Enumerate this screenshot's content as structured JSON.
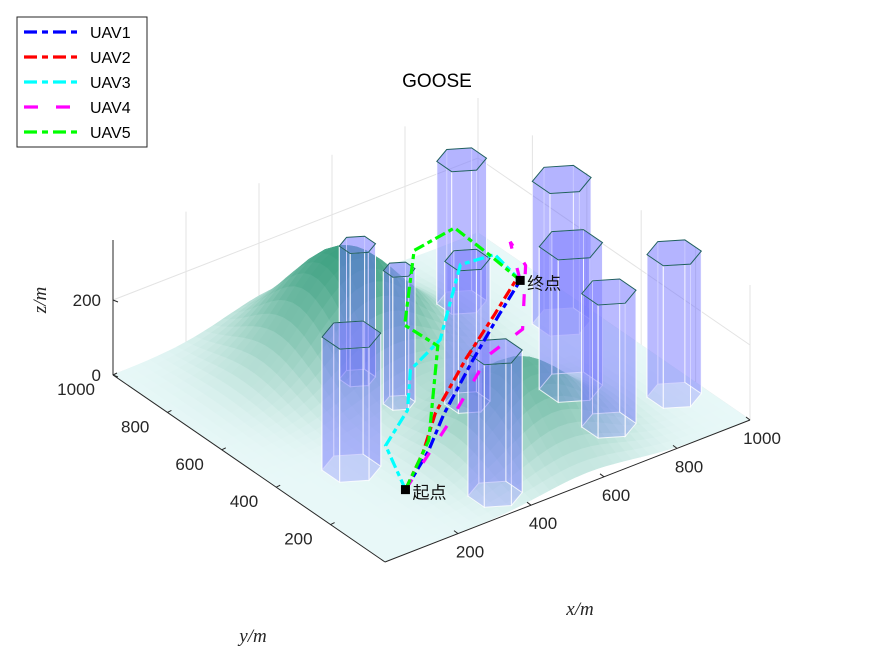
{
  "chart_data": {
    "type": "3d-line-surface",
    "title": "GOOSE",
    "xlabel": "x/m",
    "ylabel": "y/m",
    "zlabel": "z/m",
    "xlim": [
      0,
      1000
    ],
    "ylim": [
      0,
      1000
    ],
    "zlim": [
      0,
      360
    ],
    "xticks": [
      "200",
      "400",
      "600",
      "800",
      "1000"
    ],
    "yticks": [
      "200",
      "400",
      "600",
      "800",
      "1000"
    ],
    "zticks": [
      "0",
      "200"
    ],
    "grid": true,
    "legend_placement": "top-left",
    "start": {
      "label": "起点",
      "point": [
        220,
        220,
        0
      ]
    },
    "goal": {
      "label": "终点",
      "point": [
        810,
        590,
        150
      ]
    },
    "terrain_hills": [
      {
        "center": [
          455,
          760
        ],
        "height": 280,
        "sigma": 140
      },
      {
        "center": [
          555,
          245
        ],
        "height": 200,
        "sigma": 125
      }
    ],
    "obstacles": [
      {
        "center": [
          795,
          785
        ],
        "radius": 55,
        "height": 380
      },
      {
        "center": [
          920,
          585
        ],
        "radius": 65,
        "height": 380
      },
      {
        "center": [
          770,
          350
        ],
        "radius": 70,
        "height": 380
      },
      {
        "center": [
          930,
          185
        ],
        "radius": 60,
        "height": 380
      },
      {
        "center": [
          740,
          170
        ],
        "radius": 60,
        "height": 355
      },
      {
        "center": [
          420,
          665
        ],
        "radius": 40,
        "height": 355
      },
      {
        "center": [
          430,
          525
        ],
        "radius": 35,
        "height": 355
      },
      {
        "center": [
          550,
          435
        ],
        "radius": 50,
        "height": 380
      },
      {
        "center": [
          180,
          365
        ],
        "radius": 65,
        "height": 355
      },
      {
        "center": [
          365,
          85
        ],
        "radius": 60,
        "height": 380
      }
    ],
    "series": [
      {
        "name": "UAV1",
        "color": "#0000ff",
        "style": "dash-dot",
        "points": [
          [
            220,
            220,
            0
          ],
          [
            320,
            270,
            40
          ],
          [
            410,
            335,
            70
          ],
          [
            560,
            430,
            110
          ],
          [
            700,
            520,
            135
          ],
          [
            810,
            590,
            150
          ]
        ]
      },
      {
        "name": "UAV2",
        "color": "#ff0000",
        "style": "dash-dot",
        "points": [
          [
            220,
            220,
            0
          ],
          [
            310,
            275,
            40
          ],
          [
            395,
            345,
            75
          ],
          [
            550,
            440,
            115
          ],
          [
            690,
            525,
            135
          ],
          [
            805,
            595,
            155
          ]
        ]
      },
      {
        "name": "UAV3",
        "color": "#00ffff",
        "style": "dash-dot",
        "points": [
          [
            220,
            220,
            0
          ],
          [
            240,
            320,
            60
          ],
          [
            330,
            360,
            100
          ],
          [
            390,
            430,
            150
          ],
          [
            490,
            455,
            180
          ],
          [
            650,
            595,
            250
          ],
          [
            755,
            610,
            230
          ],
          [
            810,
            590,
            150
          ]
        ]
      },
      {
        "name": "UAV4",
        "color": "#ff00ff",
        "style": "dashed",
        "points": [
          [
            220,
            220,
            0
          ],
          [
            400,
            295,
            80
          ],
          [
            575,
            390,
            140
          ],
          [
            690,
            420,
            150
          ],
          [
            810,
            570,
            200
          ],
          [
            805,
            620,
            240
          ],
          [
            810,
            590,
            150
          ]
        ]
      },
      {
        "name": "UAV5",
        "color": "#00ff00",
        "style": "dash-dot",
        "points": [
          [
            220,
            220,
            0
          ],
          [
            310,
            255,
            80
          ],
          [
            480,
            450,
            170
          ],
          [
            475,
            565,
            170
          ],
          [
            605,
            705,
            250
          ],
          [
            705,
            690,
            280
          ],
          [
            735,
            600,
            240
          ],
          [
            810,
            590,
            150
          ]
        ]
      }
    ]
  }
}
